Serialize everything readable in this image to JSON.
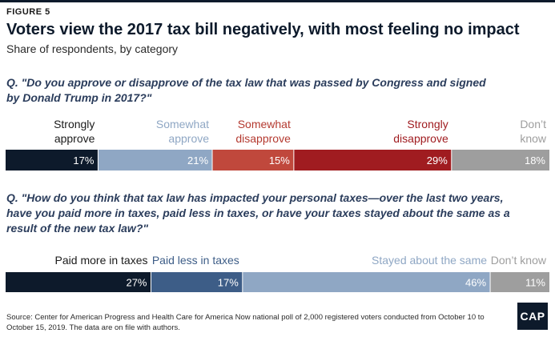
{
  "header": {
    "figure_label": "FIGURE 5",
    "title": "Voters view the 2017 tax bill negatively, with most feeling no impact",
    "subtitle": "Share of respondents, by category"
  },
  "questions": [
    {
      "text": "Q. \"Do you approve or disapprove of the tax law that was passed by Congress and signed by Donald Trump in 2017?\""
    },
    {
      "text": "Q. \"How do you think that tax law has impacted your personal taxes—over the last two years, have you paid more in taxes, paid less in taxes, or have your taxes stayed about the same as a result of the new tax law?\""
    }
  ],
  "chart_data": [
    {
      "type": "bar",
      "orientation": "stacked-horizontal",
      "unit": "%",
      "xlim": [
        0,
        100
      ],
      "categories": [
        "Strongly approve",
        "Somewhat approve",
        "Somewhat disapprove",
        "Strongly disapprove",
        "Don’t know"
      ],
      "values": [
        17,
        21,
        15,
        29,
        18
      ],
      "colors": [
        "#0d1a2b",
        "#8fa7c4",
        "#c0483c",
        "#a01c20",
        "#9e9e9e"
      ],
      "label_colors": [
        "#1b1b1b",
        "#8fa7c4",
        "#b43a30",
        "#a01c20",
        "#9e9e9e"
      ]
    },
    {
      "type": "bar",
      "orientation": "stacked-horizontal",
      "unit": "%",
      "xlim": [
        0,
        100
      ],
      "categories": [
        "Paid more in taxes",
        "Paid less in taxes",
        "Stayed about the same",
        "Don’t know"
      ],
      "values": [
        27,
        17,
        46,
        11
      ],
      "colors": [
        "#0d1a2b",
        "#3d5d87",
        "#8fa7c4",
        "#9e9e9e"
      ],
      "label_colors": [
        "#1b1b1b",
        "#3d5d87",
        "#8fa7c4",
        "#9e9e9e"
      ]
    }
  ],
  "footer": {
    "source": "Source: Center for American Progress and Health Care for America Now national poll of 2,000 registered voters conducted from October 10 to October 15, 2019. The data are on file with authors.",
    "logo_text": "CAP"
  }
}
